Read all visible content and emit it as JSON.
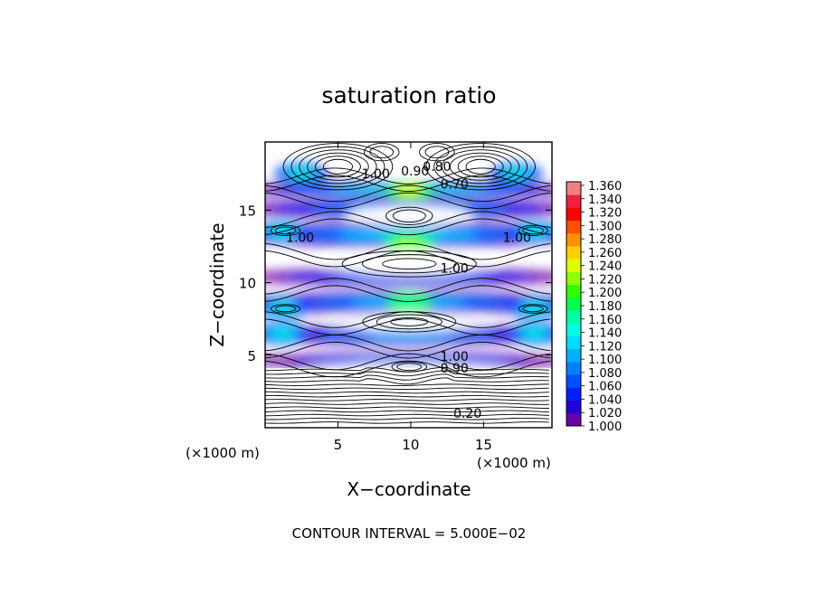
{
  "chart_data": {
    "type": "heatmap",
    "title": "saturation ratio",
    "xlabel": "X−coordinate",
    "ylabel": "Z−coordinate",
    "x_unit_label": "(×1000 m)",
    "z_unit_label": "(×1000 m)",
    "xlim": [
      0,
      19.7
    ],
    "ylim": [
      0,
      19.7
    ],
    "x_ticks": [
      "5",
      "10",
      "15"
    ],
    "y_ticks": [
      "5",
      "10",
      "15"
    ],
    "x_tick_values": [
      5,
      10,
      15
    ],
    "y_tick_values": [
      5,
      10,
      15
    ],
    "colorbar": {
      "levels": [
        "1.000",
        "1.020",
        "1.040",
        "1.060",
        "1.080",
        "1.100",
        "1.120",
        "1.140",
        "1.160",
        "1.180",
        "1.200",
        "1.220",
        "1.240",
        "1.260",
        "1.280",
        "1.300",
        "1.320",
        "1.340",
        "1.360"
      ],
      "colors": [
        "#6a00a8",
        "#2200d8",
        "#0020ff",
        "#0050ff",
        "#0080ff",
        "#00b0ff",
        "#00dcff",
        "#00ffe0",
        "#00ffa0",
        "#00ff50",
        "#30ff00",
        "#90ff00",
        "#e0ff00",
        "#ffd000",
        "#ff9000",
        "#ff5000",
        "#ff0000",
        "#f02040",
        "#f08080"
      ]
    },
    "contour_labels": [
      {
        "text": "1.00",
        "x": 7.6,
        "z": 17.2
      },
      {
        "text": "0.90",
        "x": 10.3,
        "z": 17.4
      },
      {
        "text": "0.80",
        "x": 11.8,
        "z": 17.7
      },
      {
        "text": "0.70",
        "x": 13.0,
        "z": 16.5
      },
      {
        "text": "1.00",
        "x": 2.4,
        "z": 12.8
      },
      {
        "text": "1.00",
        "x": 17.3,
        "z": 12.8
      },
      {
        "text": "1.00",
        "x": 13.0,
        "z": 10.7
      },
      {
        "text": "1.00",
        "x": 13.0,
        "z": 4.6
      },
      {
        "text": "0.90",
        "x": 13.0,
        "z": 3.8
      },
      {
        "text": "0.20",
        "x": 13.9,
        "z": 0.7
      }
    ],
    "footer": "CONTOUR INTERVAL = 5.000E−02"
  }
}
